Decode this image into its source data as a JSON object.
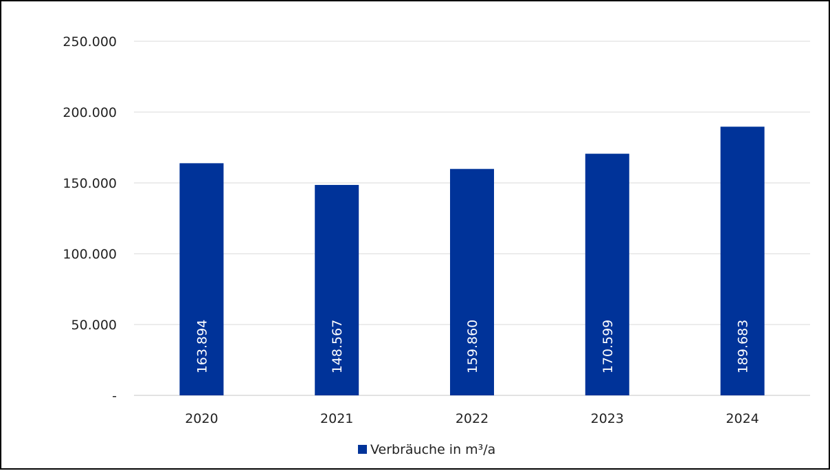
{
  "chart_data": {
    "type": "bar",
    "categories": [
      "2020",
      "2021",
      "2022",
      "2023",
      "2024"
    ],
    "series": [
      {
        "name": "Verbräuche in m³/a",
        "values": [
          163894,
          148567,
          159860,
          170599,
          189683
        ],
        "data_labels": [
          "163.894",
          "148.567",
          "159.860",
          "170.599",
          "189.683"
        ],
        "color": "#003399"
      }
    ],
    "ylim": [
      0,
      250000
    ],
    "yticks": [
      0,
      50000,
      100000,
      150000,
      200000,
      250000
    ],
    "ytick_labels": [
      "-",
      "50.000",
      "100.000",
      "150.000",
      "200.000",
      "250.000"
    ],
    "grid": true,
    "legend": "bottom",
    "gridline_color": "#d9d9d9",
    "axis_color": "#d9d9d9"
  }
}
